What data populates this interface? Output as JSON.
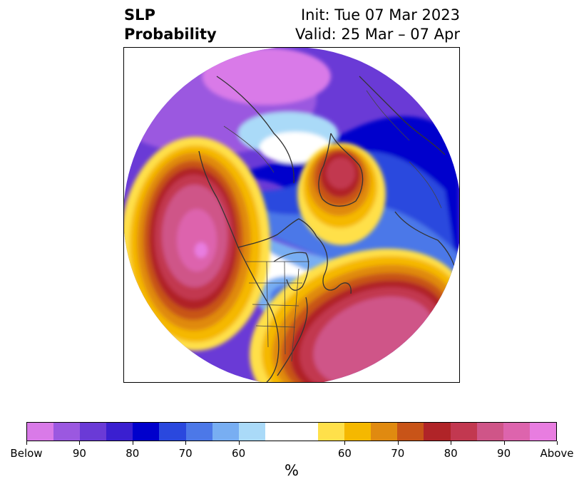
{
  "title": {
    "left_line1": "SLP",
    "left_line2": "Probability",
    "right_line1": "Init: Tue 07 Mar 2023",
    "right_line2": "Valid: 25 Mar – 07 Apr"
  },
  "map": {
    "projection": "north-polar-stereographic",
    "field": "SLP probability",
    "features": [
      "coastlines",
      "country-borders",
      "us-state-borders"
    ]
  },
  "colorbar": {
    "units": "%",
    "tick_labels": [
      "Below",
      "90",
      "80",
      "70",
      "60",
      "60",
      "70",
      "80",
      "90",
      "Above"
    ],
    "below_colors": [
      "#d97ae8",
      "#9b58e0",
      "#6a3ad6",
      "#3a1fd0",
      "#0000cc",
      "#2a48de",
      "#4c78e8",
      "#78aef2",
      "#aadaf8"
    ],
    "neutral_color": "#ffffff",
    "above_colors": [
      "#ffe04a",
      "#f5b800",
      "#e08a10",
      "#c85418",
      "#b02428",
      "#c23850",
      "#cf5588",
      "#dd64ad",
      "#e87de0"
    ]
  }
}
